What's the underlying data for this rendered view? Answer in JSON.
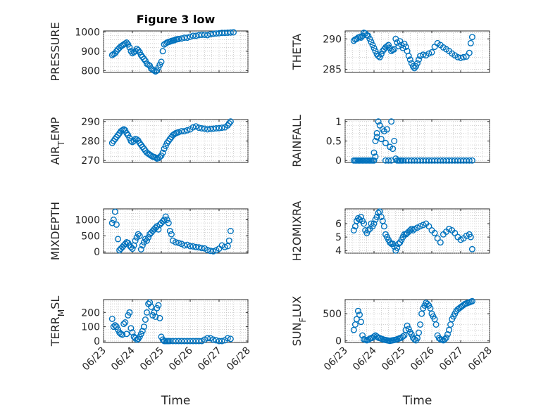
{
  "figure": {
    "title": "Figure 3 low",
    "marker_color": "#0072BD"
  },
  "chart_data": [
    {
      "id": "pressure",
      "type": "scatter",
      "title": "Figure 3 low",
      "ylabel": "PRESSURE",
      "xlabel": "",
      "xlim": [
        0,
        5
      ],
      "ylim": [
        790,
        1005
      ],
      "xticks": [
        0,
        1,
        2,
        3,
        4,
        5
      ],
      "xticklabels": [],
      "yticks": [
        800,
        900,
        1000
      ],
      "yticklabels": [
        "800",
        "900",
        "1000"
      ],
      "grid": true,
      "x": [
        0.3,
        0.35,
        0.4,
        0.45,
        0.5,
        0.55,
        0.6,
        0.65,
        0.7,
        0.75,
        0.8,
        0.85,
        0.9,
        0.95,
        1.0,
        1.05,
        1.1,
        1.15,
        1.2,
        1.25,
        1.3,
        1.35,
        1.4,
        1.45,
        1.5,
        1.55,
        1.6,
        1.65,
        1.7,
        1.75,
        1.8,
        1.85,
        1.9,
        1.95,
        2.0,
        2.05,
        2.1,
        2.15,
        2.2,
        2.25,
        2.3,
        2.35,
        2.4,
        2.45,
        2.5,
        2.55,
        2.6,
        2.7,
        2.8,
        2.9,
        3.0,
        3.1,
        3.2,
        3.3,
        3.4,
        3.5,
        3.6,
        3.7,
        3.8,
        3.9,
        4.0,
        4.1,
        4.2,
        4.3,
        4.4,
        4.5
      ],
      "y": [
        880,
        885,
        890,
        900,
        910,
        918,
        925,
        930,
        935,
        940,
        945,
        935,
        920,
        900,
        890,
        895,
        900,
        912,
        905,
        895,
        880,
        870,
        860,
        850,
        835,
        830,
        825,
        810,
        805,
        800,
        795,
        800,
        815,
        830,
        845,
        900,
        935,
        940,
        945,
        948,
        950,
        953,
        955,
        957,
        960,
        962,
        963,
        966,
        970,
        970,
        975,
        980,
        980,
        983,
        985,
        985,
        983,
        988,
        990,
        992,
        993,
        995,
        995,
        996,
        997,
        998
      ]
    },
    {
      "id": "theta",
      "type": "scatter",
      "title": "",
      "ylabel": "THETA",
      "xlabel": "",
      "xlim": [
        0,
        5
      ],
      "ylim": [
        284.5,
        291.3
      ],
      "xticks": [
        0,
        1,
        2,
        3,
        4,
        5
      ],
      "xticklabels": [],
      "yticks": [
        285,
        290
      ],
      "yticklabels": [
        "285",
        "290"
      ],
      "grid": true,
      "x": [
        0.3,
        0.35,
        0.4,
        0.45,
        0.5,
        0.55,
        0.6,
        0.65,
        0.7,
        0.75,
        0.8,
        0.85,
        0.9,
        0.95,
        1.0,
        1.05,
        1.1,
        1.15,
        1.2,
        1.25,
        1.3,
        1.35,
        1.4,
        1.45,
        1.5,
        1.55,
        1.6,
        1.65,
        1.7,
        1.75,
        1.8,
        1.85,
        1.9,
        1.95,
        2.0,
        2.05,
        2.1,
        2.15,
        2.2,
        2.25,
        2.3,
        2.35,
        2.4,
        2.45,
        2.5,
        2.55,
        2.6,
        2.7,
        2.8,
        2.9,
        3.0,
        3.1,
        3.2,
        3.3,
        3.4,
        3.5,
        3.6,
        3.7,
        3.8,
        3.9,
        4.0,
        4.1,
        4.2,
        4.3,
        4.35,
        4.4
      ],
      "y": [
        289.7,
        289.9,
        290.0,
        290.2,
        290.3,
        290.2,
        290.5,
        291.0,
        290.9,
        290.6,
        290.5,
        290.0,
        289.5,
        289.0,
        288.5,
        288.0,
        287.5,
        287.2,
        287.0,
        287.5,
        288.0,
        288.3,
        288.6,
        288.8,
        289.0,
        288.5,
        288.0,
        288.2,
        288.3,
        290.0,
        289.4,
        288.8,
        289.6,
        289.0,
        288.5,
        289.2,
        288.7,
        288.0,
        287.2,
        286.6,
        286.0,
        285.5,
        285.2,
        285.5,
        286.0,
        286.6,
        287.2,
        287.4,
        287.3,
        287.6,
        287.8,
        288.7,
        289.3,
        289.0,
        288.6,
        288.3,
        288.0,
        287.6,
        287.3,
        287.0,
        286.9,
        287.0,
        287.1,
        287.7,
        289.3,
        290.3
      ]
    },
    {
      "id": "air_temp",
      "type": "scatter",
      "title": "",
      "ylabel": "AIR_TEMP",
      "xlabel": "",
      "xlim": [
        0,
        5
      ],
      "ylim": [
        269,
        291
      ],
      "xticks": [
        0,
        1,
        2,
        3,
        4,
        5
      ],
      "xticklabels": [],
      "yticks": [
        270,
        280,
        290
      ],
      "yticklabels": [
        "270",
        "280",
        "290"
      ],
      "grid": true,
      "x": [
        0.3,
        0.35,
        0.4,
        0.45,
        0.5,
        0.55,
        0.6,
        0.65,
        0.7,
        0.75,
        0.8,
        0.85,
        0.9,
        0.95,
        1.0,
        1.05,
        1.1,
        1.15,
        1.2,
        1.25,
        1.3,
        1.35,
        1.4,
        1.45,
        1.5,
        1.55,
        1.6,
        1.65,
        1.7,
        1.75,
        1.8,
        1.85,
        1.9,
        1.95,
        2.0,
        2.05,
        2.1,
        2.15,
        2.2,
        2.25,
        2.3,
        2.35,
        2.4,
        2.45,
        2.5,
        2.55,
        2.6,
        2.7,
        2.8,
        2.9,
        3.0,
        3.1,
        3.2,
        3.3,
        3.4,
        3.5,
        3.6,
        3.7,
        3.8,
        3.9,
        4.0,
        4.1,
        4.2,
        4.3,
        4.35,
        4.4
      ],
      "y": [
        279,
        280,
        281,
        282,
        283,
        284,
        285,
        285.5,
        286,
        285.5,
        284,
        283,
        281.5,
        280,
        279.5,
        280,
        281,
        280.8,
        280.2,
        279,
        278,
        277,
        276,
        275,
        274,
        273.5,
        273,
        272.5,
        272,
        271.8,
        271.5,
        271,
        271.2,
        271.8,
        272.5,
        274,
        276,
        277.5,
        279,
        280,
        281,
        282,
        283,
        283.5,
        284,
        284.3,
        284.5,
        285,
        285,
        285.5,
        286,
        287,
        287.5,
        286.8,
        286.5,
        286.3,
        286,
        286.2,
        286.3,
        286.5,
        286.6,
        286.8,
        287,
        288,
        289,
        290
      ]
    },
    {
      "id": "rainfall",
      "type": "scatter",
      "title": "",
      "ylabel": "RAINFALL",
      "xlabel": "",
      "xlim": [
        0,
        5
      ],
      "ylim": [
        -0.05,
        1.05
      ],
      "xticks": [
        0,
        1,
        2,
        3,
        4,
        5
      ],
      "xticklabels": [],
      "yticks": [
        0,
        0.5,
        1
      ],
      "yticklabels": [
        "0",
        "0.5",
        "1"
      ],
      "grid": true,
      "x": [
        0.3,
        0.35,
        0.4,
        0.45,
        0.5,
        0.55,
        0.6,
        0.65,
        0.7,
        0.75,
        0.8,
        0.85,
        0.9,
        0.95,
        1.0,
        1.0,
        1.05,
        1.05,
        1.1,
        1.1,
        1.15,
        1.2,
        1.25,
        1.3,
        1.35,
        1.4,
        1.4,
        1.45,
        1.5,
        1.55,
        1.6,
        1.6,
        1.65,
        1.7,
        1.75,
        1.8,
        1.85,
        1.9,
        1.95,
        2.0,
        2.1,
        2.2,
        2.3,
        2.4,
        2.5,
        2.6,
        2.7,
        2.8,
        2.9,
        3.0,
        3.1,
        3.2,
        3.3,
        3.4,
        3.5,
        3.6,
        3.7,
        3.8,
        3.9,
        4.0,
        4.1,
        4.2,
        4.3,
        4.4
      ],
      "y": [
        0,
        0,
        0,
        0,
        0,
        0,
        0,
        0,
        0,
        0,
        0,
        0,
        0,
        0,
        0.2,
        0,
        0.5,
        0.1,
        0.6,
        0.7,
        1.0,
        0.9,
        0.55,
        0.8,
        0.75,
        0.45,
        0,
        0.8,
        0,
        0.35,
        1.0,
        0,
        0.3,
        0.5,
        0.05,
        0,
        0,
        0,
        0,
        0,
        0,
        0,
        0,
        0,
        0,
        0,
        0,
        0,
        0,
        0,
        0,
        0,
        0,
        0,
        0,
        0,
        0,
        0,
        0,
        0,
        0,
        0,
        0,
        0
      ]
    },
    {
      "id": "mixdepth",
      "type": "scatter",
      "title": "",
      "ylabel": "MIXDEPTH",
      "xlabel": "",
      "xlim": [
        0,
        5
      ],
      "ylim": [
        -40,
        1340
      ],
      "xticks": [
        0,
        1,
        2,
        3,
        4,
        5
      ],
      "xticklabels": [],
      "yticks": [
        0,
        500,
        1000
      ],
      "yticklabels": [
        "0",
        "500",
        "1000"
      ],
      "grid": true,
      "x": [
        0.3,
        0.35,
        0.4,
        0.45,
        0.5,
        0.55,
        0.6,
        0.65,
        0.7,
        0.75,
        0.8,
        0.85,
        0.9,
        0.95,
        1.0,
        1.05,
        1.1,
        1.15,
        1.2,
        1.25,
        1.3,
        1.35,
        1.4,
        1.45,
        1.5,
        1.55,
        1.6,
        1.65,
        1.7,
        1.75,
        1.8,
        1.85,
        1.9,
        1.95,
        2.0,
        2.05,
        2.1,
        2.15,
        2.2,
        2.25,
        2.3,
        2.35,
        2.4,
        2.5,
        2.6,
        2.7,
        2.8,
        2.9,
        3.0,
        3.1,
        3.2,
        3.3,
        3.4,
        3.5,
        3.6,
        3.7,
        3.8,
        3.9,
        4.0,
        4.1,
        4.2,
        4.3,
        4.35,
        4.4
      ],
      "y": [
        900,
        1000,
        1250,
        850,
        400,
        50,
        100,
        150,
        200,
        250,
        300,
        280,
        200,
        150,
        100,
        200,
        350,
        450,
        550,
        500,
        80,
        200,
        300,
        400,
        350,
        450,
        550,
        600,
        650,
        700,
        750,
        800,
        700,
        850,
        900,
        950,
        1000,
        1100,
        1000,
        900,
        650,
        550,
        350,
        300,
        280,
        250,
        200,
        220,
        180,
        170,
        150,
        140,
        120,
        110,
        60,
        30,
        20,
        50,
        100,
        200,
        150,
        180,
        350,
        650
      ]
    },
    {
      "id": "h2omixra",
      "type": "scatter",
      "title": "",
      "ylabel": "H2OMIXRA",
      "xlabel": "",
      "xlim": [
        0,
        5
      ],
      "ylim": [
        3.8,
        7.1
      ],
      "xticks": [
        0,
        1,
        2,
        3,
        4,
        5
      ],
      "xticklabels": [],
      "yticks": [
        4,
        5,
        6
      ],
      "yticklabels": [
        "4",
        "5",
        "6"
      ],
      "grid": true,
      "x": [
        0.3,
        0.35,
        0.4,
        0.45,
        0.5,
        0.55,
        0.6,
        0.65,
        0.7,
        0.75,
        0.8,
        0.85,
        0.9,
        0.95,
        1.0,
        1.05,
        1.1,
        1.15,
        1.2,
        1.25,
        1.3,
        1.35,
        1.4,
        1.45,
        1.5,
        1.55,
        1.6,
        1.65,
        1.7,
        1.75,
        1.8,
        1.85,
        1.9,
        1.95,
        2.0,
        2.05,
        2.1,
        2.15,
        2.2,
        2.25,
        2.3,
        2.35,
        2.4,
        2.5,
        2.6,
        2.7,
        2.8,
        2.9,
        3.0,
        3.1,
        3.2,
        3.3,
        3.4,
        3.5,
        3.6,
        3.7,
        3.8,
        3.9,
        4.0,
        4.1,
        4.2,
        4.3,
        4.35,
        4.4
      ],
      "y": [
        5.5,
        5.8,
        6.2,
        6.4,
        6.3,
        6.5,
        6.2,
        6.0,
        5.5,
        5.3,
        5.5,
        5.6,
        6.0,
        5.8,
        6.0,
        6.3,
        6.5,
        6.8,
        6.9,
        6.5,
        6.2,
        5.8,
        5.2,
        5.0,
        4.8,
        4.6,
        4.5,
        4.5,
        4.3,
        4.0,
        4.2,
        4.5,
        4.6,
        4.8,
        5.0,
        5.2,
        5.2,
        5.3,
        5.4,
        5.5,
        5.6,
        5.5,
        5.6,
        5.7,
        5.8,
        5.9,
        6.0,
        5.8,
        5.5,
        5.3,
        4.9,
        4.6,
        5.2,
        5.4,
        5.6,
        5.5,
        5.3,
        5.0,
        4.8,
        4.9,
        5.1,
        5.2,
        5.0,
        4.1
      ]
    },
    {
      "id": "terr_msl",
      "type": "scatter",
      "title": "",
      "ylabel": "TERR_MSL",
      "xlabel": "Time",
      "xlim": [
        0,
        5
      ],
      "ylim": [
        -10,
        290
      ],
      "xticks": [
        0,
        1,
        2,
        3,
        4,
        5
      ],
      "xticklabels": [
        "06/23",
        "06/24",
        "06/25",
        "06/26",
        "06/27",
        "06/28"
      ],
      "yticks": [
        0,
        100,
        200
      ],
      "yticklabels": [
        "0",
        "100",
        "200"
      ],
      "grid": true,
      "x": [
        0.3,
        0.35,
        0.4,
        0.45,
        0.5,
        0.55,
        0.6,
        0.65,
        0.7,
        0.75,
        0.8,
        0.85,
        0.9,
        0.95,
        1.0,
        1.05,
        1.1,
        1.15,
        1.2,
        1.25,
        1.3,
        1.35,
        1.4,
        1.45,
        1.5,
        1.55,
        1.6,
        1.65,
        1.7,
        1.75,
        1.8,
        1.85,
        1.9,
        1.95,
        2.0,
        2.05,
        2.1,
        2.15,
        2.2,
        2.25,
        2.3,
        2.4,
        2.5,
        2.6,
        2.7,
        2.8,
        2.9,
        3.0,
        3.1,
        3.2,
        3.3,
        3.4,
        3.5,
        3.6,
        3.7,
        3.8,
        3.9,
        4.0,
        4.1,
        4.2,
        4.3,
        4.4
      ],
      "y": [
        155,
        100,
        110,
        100,
        80,
        60,
        50,
        45,
        120,
        130,
        50,
        180,
        200,
        90,
        60,
        30,
        20,
        10,
        15,
        30,
        50,
        70,
        100,
        150,
        200,
        260,
        270,
        240,
        180,
        200,
        170,
        230,
        250,
        160,
        30,
        10,
        0,
        0,
        0,
        0,
        0,
        0,
        0,
        0,
        0,
        0,
        0,
        0,
        0,
        0,
        0,
        0,
        10,
        20,
        20,
        10,
        5,
        0,
        0,
        5,
        20,
        15
      ]
    },
    {
      "id": "sun_flux",
      "type": "scatter",
      "title": "",
      "ylabel": "SUN_FLUX",
      "xlabel": "Time",
      "xlim": [
        0,
        5
      ],
      "ylim": [
        -30,
        760
      ],
      "xticks": [
        0,
        1,
        2,
        3,
        4,
        5
      ],
      "xticklabels": [
        "06/23",
        "06/24",
        "06/25",
        "06/26",
        "06/27",
        "06/28"
      ],
      "yticks": [
        0,
        500
      ],
      "yticklabels": [
        "0",
        "500"
      ],
      "grid": true,
      "x": [
        0.3,
        0.35,
        0.4,
        0.45,
        0.5,
        0.55,
        0.6,
        0.65,
        0.7,
        0.75,
        0.8,
        0.85,
        0.9,
        0.95,
        1.0,
        1.05,
        1.1,
        1.15,
        1.2,
        1.25,
        1.3,
        1.35,
        1.4,
        1.45,
        1.5,
        1.55,
        1.6,
        1.65,
        1.7,
        1.75,
        1.8,
        1.85,
        1.9,
        1.95,
        2.0,
        2.05,
        2.1,
        2.15,
        2.2,
        2.25,
        2.3,
        2.35,
        2.4,
        2.45,
        2.5,
        2.55,
        2.6,
        2.65,
        2.7,
        2.75,
        2.8,
        2.85,
        2.9,
        2.95,
        3.0,
        3.05,
        3.1,
        3.15,
        3.2,
        3.25,
        3.3,
        3.35,
        3.4,
        3.45,
        3.5,
        3.55,
        3.6,
        3.65,
        3.7,
        3.75,
        3.8,
        3.85,
        3.9,
        3.95,
        4.0,
        4.05,
        4.1,
        4.15,
        4.2,
        4.25,
        4.3,
        4.35,
        4.4
      ],
      "y": [
        200,
        300,
        400,
        550,
        480,
        350,
        100,
        30,
        20,
        10,
        20,
        40,
        50,
        60,
        80,
        100,
        80,
        60,
        50,
        40,
        30,
        20,
        15,
        10,
        5,
        0,
        5,
        10,
        15,
        20,
        30,
        40,
        50,
        60,
        80,
        100,
        200,
        280,
        220,
        160,
        120,
        60,
        30,
        10,
        50,
        150,
        300,
        500,
        600,
        650,
        700,
        680,
        650,
        600,
        500,
        450,
        400,
        300,
        100,
        50,
        30,
        20,
        10,
        30,
        60,
        120,
        200,
        300,
        400,
        450,
        500,
        550,
        580,
        600,
        620,
        640,
        660,
        680,
        690,
        700,
        710,
        720,
        730
      ]
    }
  ]
}
